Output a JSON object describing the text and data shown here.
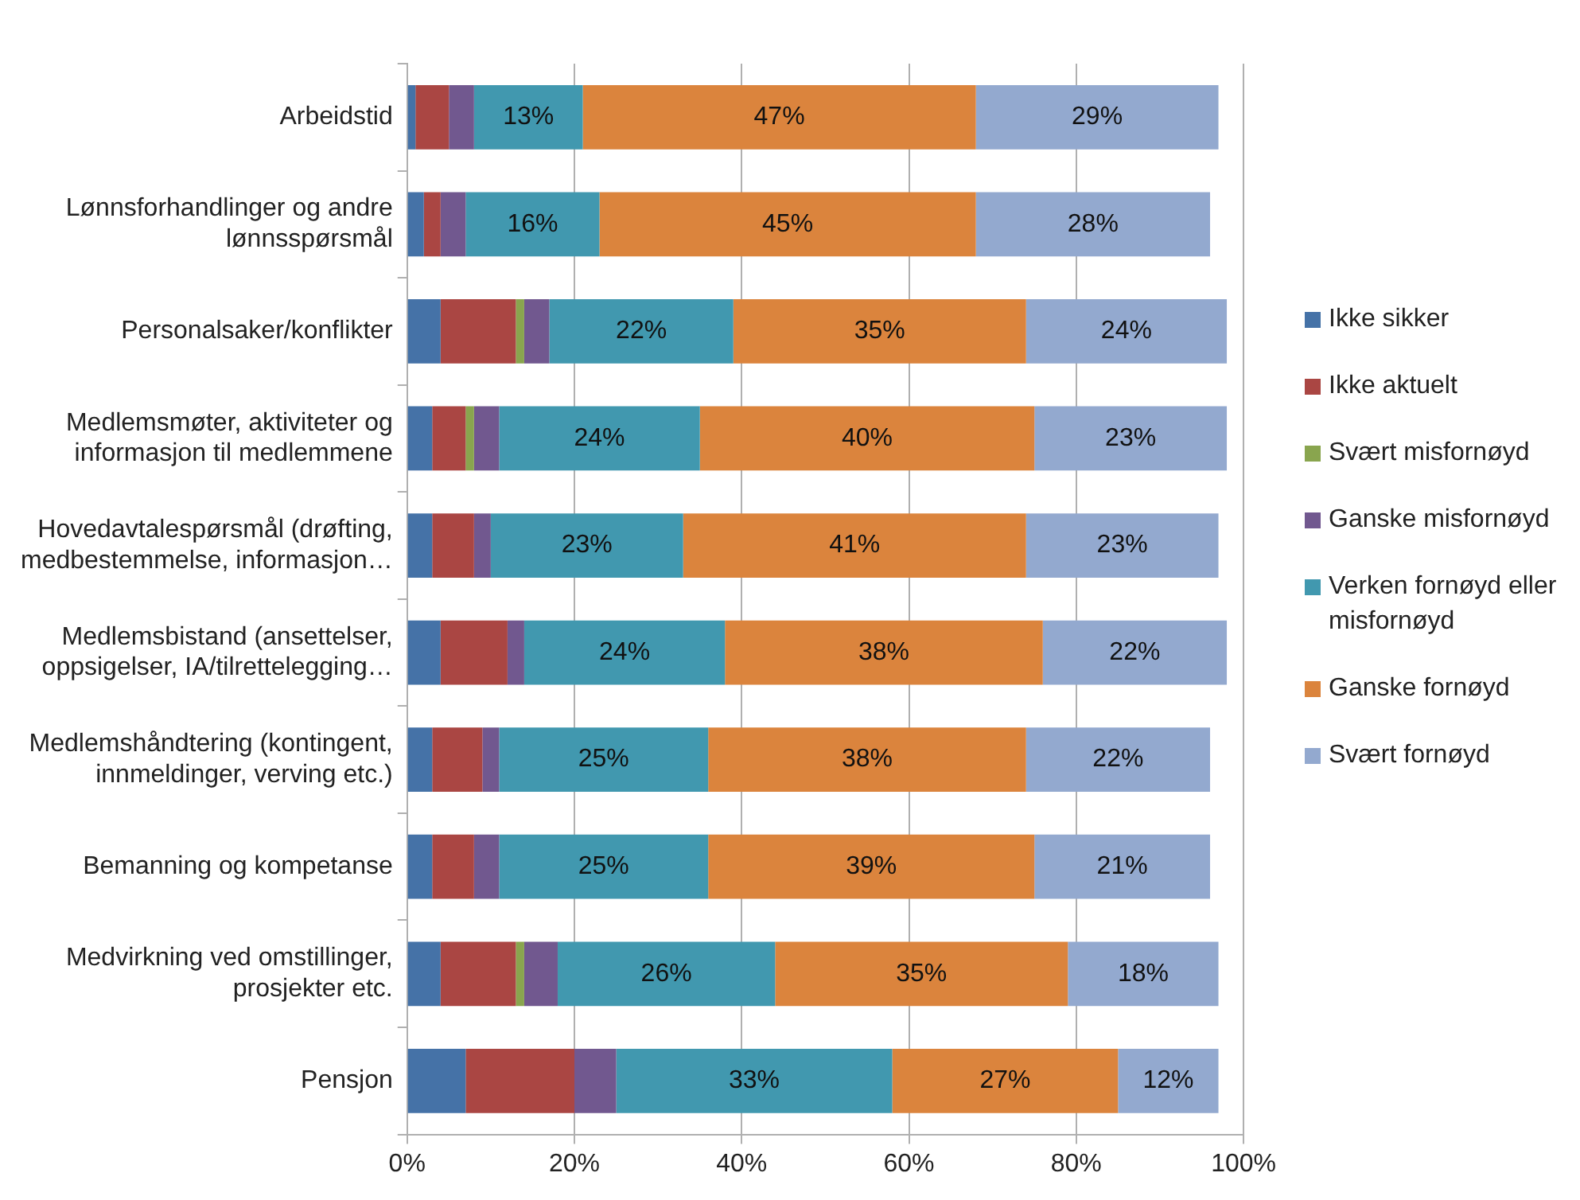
{
  "chart_data": {
    "type": "bar",
    "orientation": "horizontal",
    "stacked": true,
    "categories": [
      "Arbeidstid",
      "Lønnsforhandlinger og andre lønnsspørsmål",
      "Personalsaker/konflikter",
      "Medlemsmøter, aktiviteter og informasjon til medlemmene",
      "Hovedavtalespørsmål (drøfting, medbestemmelse, informasjon…",
      "Medlemsbistand (ansettelser, oppsigelser, IA/tilrettelegging…",
      "Medlemshåndtering (kontingent, innmeldinger, verving etc.)",
      "Bemanning og kompetanse",
      "Medvirkning ved omstillinger, prosjekter etc.",
      "Pensjon"
    ],
    "series": [
      {
        "name": "Ikke sikker",
        "color": "#4572a7",
        "values": [
          1,
          2,
          4,
          3,
          3,
          4,
          3,
          3,
          4,
          7
        ]
      },
      {
        "name": "Ikke aktuelt",
        "color": "#aa4643",
        "values": [
          4,
          2,
          9,
          4,
          5,
          8,
          6,
          5,
          9,
          13
        ]
      },
      {
        "name": "Svært misfornøyd",
        "color": "#89a54e",
        "values": [
          0,
          0,
          1,
          1,
          0,
          0,
          0,
          0,
          1,
          0
        ]
      },
      {
        "name": "Ganske misfornøyd",
        "color": "#71588f",
        "values": [
          3,
          3,
          3,
          3,
          2,
          2,
          2,
          3,
          4,
          5
        ]
      },
      {
        "name": "Verken fornøyd eller misfornøyd",
        "color": "#4198af",
        "values": [
          13,
          16,
          22,
          24,
          23,
          24,
          25,
          25,
          26,
          33
        ],
        "value_labels": [
          "13%",
          "16%",
          "22%",
          "24%",
          "23%",
          "24%",
          "25%",
          "25%",
          "26%",
          "33%"
        ]
      },
      {
        "name": "Ganske fornøyd",
        "color": "#db843d",
        "values": [
          47,
          45,
          35,
          40,
          41,
          38,
          38,
          39,
          35,
          27
        ],
        "value_labels": [
          "47%",
          "45%",
          "35%",
          "40%",
          "41%",
          "38%",
          "38%",
          "39%",
          "35%",
          "27%"
        ]
      },
      {
        "name": "Svært fornøyd",
        "color": "#93a9cf",
        "values": [
          29,
          28,
          24,
          23,
          23,
          22,
          22,
          21,
          18,
          12
        ],
        "value_labels": [
          "29%",
          "28%",
          "24%",
          "23%",
          "23%",
          "22%",
          "22%",
          "21%",
          "18%",
          "12%"
        ]
      }
    ],
    "xlim": [
      0,
      100
    ],
    "xticks": [
      {
        "value": 0,
        "label": "0%"
      },
      {
        "value": 20,
        "label": "20%"
      },
      {
        "value": 40,
        "label": "40%"
      },
      {
        "value": 60,
        "label": "60%"
      },
      {
        "value": 80,
        "label": "80%"
      },
      {
        "value": 100,
        "label": "100%"
      }
    ],
    "grid": "x",
    "legend": "right"
  }
}
